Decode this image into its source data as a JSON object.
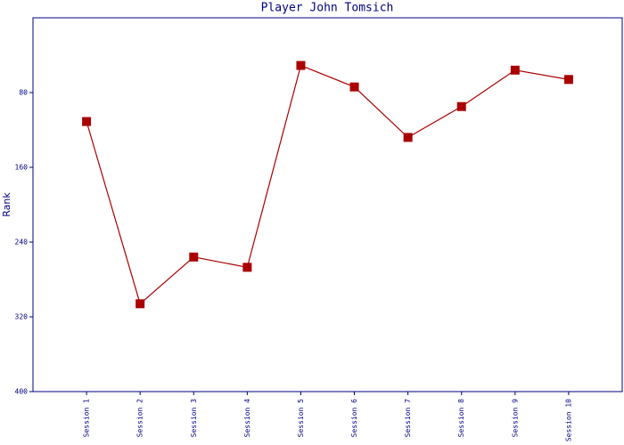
{
  "chart_data": {
    "type": "line",
    "title": "Player John Tomsich",
    "y_label": "Rank",
    "categories": [
      "Session 1",
      "Session 2",
      "Session 3",
      "Session 4",
      "Session 5",
      "Session 6",
      "Session 7",
      "Session 8",
      "Session 9",
      "Session 10"
    ],
    "series": [
      {
        "name": "Rank",
        "color": "#aa0000",
        "values": [
          111,
          306,
          256,
          267,
          51,
          74,
          128,
          95,
          56,
          66
        ]
      }
    ],
    "ylim": [
      0,
      400
    ],
    "yticks": [
      80,
      160,
      240,
      320,
      400
    ],
    "y_inverted": true,
    "grid": false
  }
}
